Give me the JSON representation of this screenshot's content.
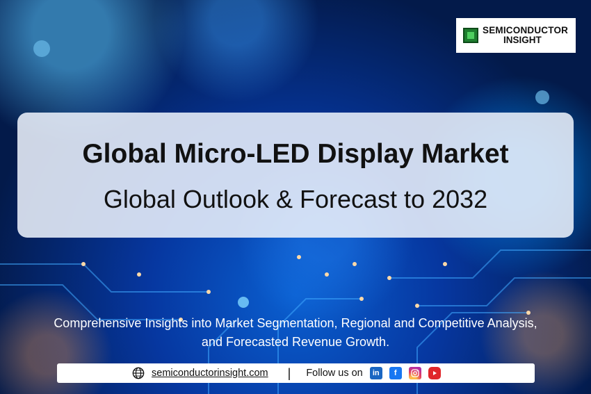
{
  "logo": {
    "line1": "SEMICONDUCTOR",
    "line2": "INSIGHT",
    "icon": "chip-icon"
  },
  "title": "Global Micro-LED Display Market",
  "subtitle": "Global Outlook & Forecast to 2032",
  "description": {
    "line1": "Comprehensive Insights into Market Segmentation, Regional and Competitive Analysis,",
    "line2": "and Forecasted Revenue Growth."
  },
  "footer": {
    "website": "semiconductorinsight.com",
    "separator": "|",
    "follow_label": "Follow us on",
    "social": {
      "linkedin": "in",
      "facebook": "f",
      "instagram": "instagram-icon",
      "youtube": "youtube-icon"
    }
  },
  "colors": {
    "background": "#031a4a",
    "panel": "#ebf0fa",
    "text_dark": "#111111",
    "text_light": "#ffffff"
  }
}
